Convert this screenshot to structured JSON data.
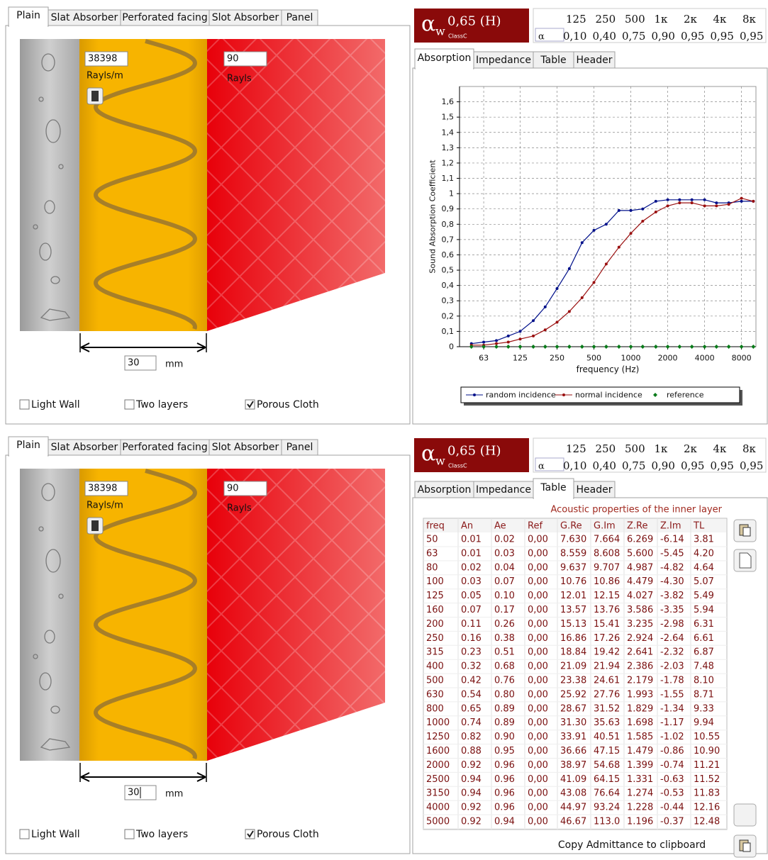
{
  "panels": [
    {
      "left": {
        "tabs": [
          "Plain",
          "Slat Absorber",
          "Perforated facing",
          "Slot Absorber",
          "Panel"
        ],
        "resistivity": "38398",
        "resistivity_unit": "Rayls/m",
        "cloth_resistance": "90",
        "cloth_unit": "Rayls",
        "thickness": "30",
        "thickness_unit": "mm",
        "options": [
          {
            "label": "Light Wall",
            "checked": false
          },
          {
            "label": "Two layers",
            "checked": false
          },
          {
            "label": "Porous Cloth",
            "checked": true
          }
        ]
      },
      "rating": {
        "symbol": "α",
        "subscript": "w",
        "value": "0,65 (H)",
        "class": "ClassC"
      },
      "bands": {
        "header": [
          "125",
          "250",
          "500",
          "1κ",
          "2κ",
          "4κ",
          "8κ"
        ],
        "row_label": "α",
        "values": [
          "0,10",
          "0,40",
          "0,75",
          "0,90",
          "0,95",
          "0,95",
          "0,95"
        ]
      },
      "right_tabs": [
        "Absorption",
        "Impedance",
        "Table",
        "Header"
      ]
    },
    {
      "left": {
        "tabs": [
          "Plain",
          "Slat Absorber",
          "Perforated facing",
          "Slot Absorber",
          "Panel"
        ],
        "resistivity": "38398",
        "resistivity_unit": "Rayls/m",
        "cloth_resistance": "90",
        "cloth_unit": "Rayls",
        "thickness": "30",
        "thickness_unit": "mm",
        "options": [
          {
            "label": "Light Wall",
            "checked": false
          },
          {
            "label": "Two layers",
            "checked": false
          },
          {
            "label": "Porous Cloth",
            "checked": true
          }
        ]
      },
      "rating": {
        "symbol": "α",
        "subscript": "w",
        "value": "0,65 (H)",
        "class": "ClassC"
      },
      "bands": {
        "header": [
          "125",
          "250",
          "500",
          "1κ",
          "2κ",
          "4κ",
          "8κ"
        ],
        "row_label": "α",
        "values": [
          "0,10",
          "0,40",
          "0,75",
          "0,90",
          "0,95",
          "0,95",
          "0,95"
        ]
      },
      "right_tabs": [
        "Absorption",
        "Impedance",
        "Table",
        "Header"
      ]
    }
  ],
  "chart_data": {
    "type": "line",
    "xlabel": "frequency (Hz)",
    "ylabel": "Sound Absorption Coefficient",
    "xscale": "log",
    "grid": true,
    "x": [
      50,
      63,
      80,
      100,
      125,
      160,
      200,
      250,
      315,
      400,
      500,
      630,
      800,
      1000,
      1250,
      1600,
      2000,
      2500,
      3150,
      4000,
      5000,
      6300,
      8000,
      10000
    ],
    "xlim": [
      40,
      10500
    ],
    "xticks": [
      63,
      125,
      250,
      500,
      1000,
      2000,
      4000,
      8000
    ],
    "ylim": [
      0,
      1.7
    ],
    "yticks": [
      0,
      {
        "value": 0.1,
        "label": "0,1"
      },
      {
        "value": 0.2,
        "label": "0,2"
      },
      {
        "value": 0.3,
        "label": "0,3"
      },
      {
        "value": 0.4,
        "label": "0,4"
      },
      {
        "value": 0.5,
        "label": "0,5"
      },
      {
        "value": 0.6,
        "label": "0,6"
      },
      {
        "value": 0.7,
        "label": "0,7"
      },
      {
        "value": 0.8,
        "label": "0,8"
      },
      {
        "value": 0.9,
        "label": "0,9"
      },
      1,
      {
        "value": 1.1,
        "label": "1,1"
      },
      {
        "value": 1.2,
        "label": "1,2"
      },
      {
        "value": 1.3,
        "label": "1,3"
      },
      {
        "value": 1.4,
        "label": "1,4"
      },
      {
        "value": 1.5,
        "label": "1,5"
      },
      {
        "value": 1.6,
        "label": "1,6"
      }
    ],
    "series": [
      {
        "name": "random incidence",
        "color": "#00108a",
        "line": true,
        "marker": "dot",
        "values": [
          0.02,
          0.03,
          0.04,
          0.07,
          0.1,
          0.17,
          0.26,
          0.38,
          0.51,
          0.68,
          0.76,
          0.8,
          0.89,
          0.89,
          0.9,
          0.95,
          0.96,
          0.96,
          0.96,
          0.96,
          0.94,
          0.94,
          0.95,
          0.95
        ]
      },
      {
        "name": "normal incidence",
        "color": "#9a0f0f",
        "line": true,
        "marker": "dot",
        "values": [
          0.01,
          0.01,
          0.02,
          0.03,
          0.05,
          0.07,
          0.11,
          0.16,
          0.23,
          0.32,
          0.42,
          0.54,
          0.65,
          0.74,
          0.82,
          0.88,
          0.92,
          0.94,
          0.94,
          0.92,
          0.92,
          0.93,
          0.97,
          0.95
        ]
      },
      {
        "name": "reference",
        "color": "#0a7a1a",
        "line": false,
        "marker": "diamond",
        "values": [
          0,
          0,
          0,
          0,
          0,
          0,
          0,
          0,
          0,
          0,
          0,
          0,
          0,
          0,
          0,
          0,
          0,
          0,
          0,
          0,
          0,
          0,
          0,
          0
        ]
      }
    ]
  },
  "table": {
    "title": "Acoustic properties of the inner layer",
    "columns": [
      "freq",
      "An",
      "Ae",
      "Ref",
      "G.Re",
      "G.Im",
      "Z.Re",
      "Z.Im",
      "TL"
    ],
    "rows": [
      [
        "50",
        "0.01",
        "0.02",
        "0,00",
        "7.630",
        "7.664",
        "6.269",
        "-6.14",
        "3.81"
      ],
      [
        "63",
        "0.01",
        "0.03",
        "0,00",
        "8.559",
        "8.608",
        "5.600",
        "-5.45",
        "4.20"
      ],
      [
        "80",
        "0.02",
        "0.04",
        "0,00",
        "9.637",
        "9.707",
        "4.987",
        "-4.82",
        "4.64"
      ],
      [
        "100",
        "0.03",
        "0.07",
        "0,00",
        "10.76",
        "10.86",
        "4.479",
        "-4.30",
        "5.07"
      ],
      [
        "125",
        "0.05",
        "0.10",
        "0,00",
        "12.01",
        "12.15",
        "4.027",
        "-3.82",
        "5.49"
      ],
      [
        "160",
        "0.07",
        "0.17",
        "0,00",
        "13.57",
        "13.76",
        "3.586",
        "-3.35",
        "5.94"
      ],
      [
        "200",
        "0.11",
        "0.26",
        "0,00",
        "15.13",
        "15.41",
        "3.235",
        "-2.98",
        "6.31"
      ],
      [
        "250",
        "0.16",
        "0.38",
        "0,00",
        "16.86",
        "17.26",
        "2.924",
        "-2.64",
        "6.61"
      ],
      [
        "315",
        "0.23",
        "0.51",
        "0,00",
        "18.84",
        "19.42",
        "2.641",
        "-2.32",
        "6.87"
      ],
      [
        "400",
        "0.32",
        "0.68",
        "0,00",
        "21.09",
        "21.94",
        "2.386",
        "-2.03",
        "7.48"
      ],
      [
        "500",
        "0.42",
        "0.76",
        "0,00",
        "23.38",
        "24.61",
        "2.179",
        "-1.78",
        "8.10"
      ],
      [
        "630",
        "0.54",
        "0.80",
        "0,00",
        "25.92",
        "27.76",
        "1.993",
        "-1.55",
        "8.71"
      ],
      [
        "800",
        "0.65",
        "0.89",
        "0,00",
        "28.67",
        "31.52",
        "1.829",
        "-1.34",
        "9.33"
      ],
      [
        "1000",
        "0.74",
        "0.89",
        "0,00",
        "31.30",
        "35.63",
        "1.698",
        "-1.17",
        "9.94"
      ],
      [
        "1250",
        "0.82",
        "0.90",
        "0,00",
        "33.91",
        "40.51",
        "1.585",
        "-1.02",
        "10.55"
      ],
      [
        "1600",
        "0.88",
        "0.95",
        "0,00",
        "36.66",
        "47.15",
        "1.479",
        "-0.86",
        "10.90"
      ],
      [
        "2000",
        "0.92",
        "0.96",
        "0,00",
        "38.97",
        "54.68",
        "1.399",
        "-0.74",
        "11.21"
      ],
      [
        "2500",
        "0.94",
        "0.96",
        "0,00",
        "41.09",
        "64.15",
        "1.331",
        "-0.63",
        "11.52"
      ],
      [
        "3150",
        "0.94",
        "0.96",
        "0,00",
        "43.08",
        "76.64",
        "1.274",
        "-0.53",
        "11.83"
      ],
      [
        "4000",
        "0.92",
        "0.96",
        "0,00",
        "44.97",
        "93.24",
        "1.228",
        "-0.44",
        "12.16"
      ],
      [
        "5000",
        "0.92",
        "0.94",
        "0,00",
        "46.67",
        "113.0",
        "1.196",
        "-0.37",
        "12.48"
      ]
    ],
    "button": "Copy Admittance to clipboard"
  }
}
